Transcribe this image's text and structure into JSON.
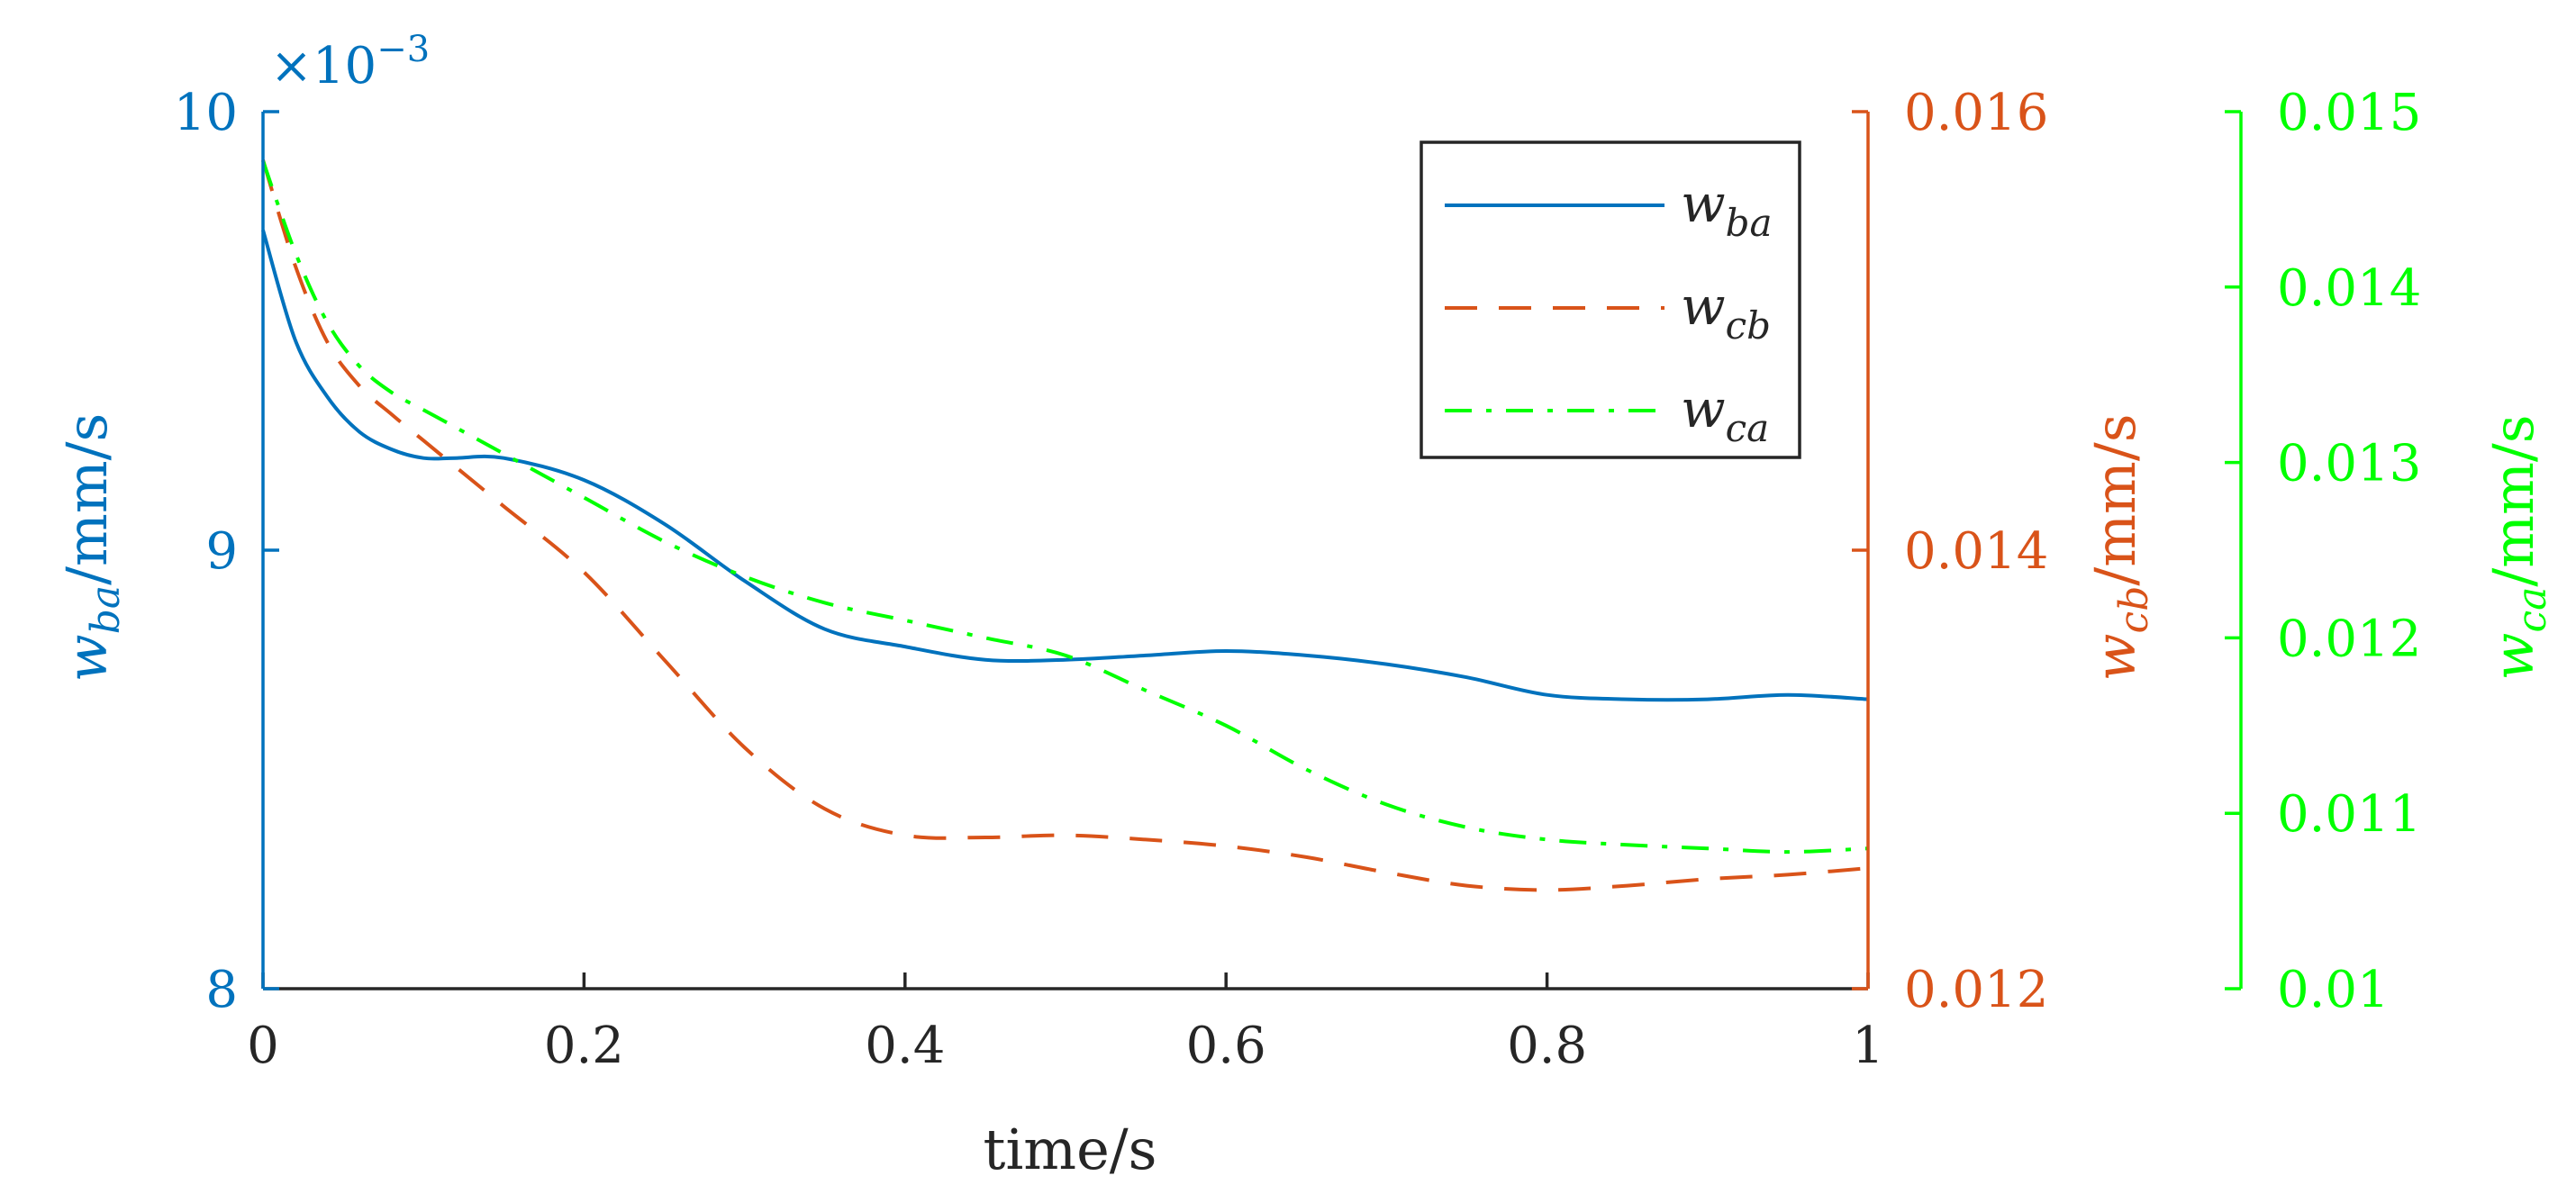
{
  "chart_data": {
    "type": "line",
    "xlabel": "time/s",
    "xlim": [
      0,
      1
    ],
    "x_ticks": [
      0,
      0.2,
      0.4,
      0.6,
      0.8,
      1
    ],
    "x_tick_labels": [
      "0",
      "0.2",
      "0.4",
      "0.6",
      "0.8",
      "1"
    ],
    "axes": {
      "left": {
        "color": "#0072BD",
        "label_main": "w",
        "label_sub": "ba",
        "label_unit": "/mm/s",
        "ylim": [
          0.008,
          0.01
        ],
        "ticks": [
          0.008,
          0.009,
          0.01
        ],
        "tick_labels": [
          "8",
          "9",
          "10"
        ],
        "exponent_prefix": "×10",
        "exponent": "−3"
      },
      "right1": {
        "color": "#D95319",
        "label_main": "w",
        "label_sub": "cb",
        "label_unit": "/mm/s",
        "ylim": [
          0.012,
          0.016
        ],
        "ticks": [
          0.012,
          0.014,
          0.016
        ],
        "tick_labels": [
          "0.012",
          "0.014",
          "0.016"
        ]
      },
      "right2": {
        "color": "#00FF00",
        "label_main": "w",
        "label_sub": "ca",
        "label_unit": "/mm/s",
        "ylim": [
          0.01,
          0.015
        ],
        "ticks": [
          0.01,
          0.011,
          0.012,
          0.013,
          0.014,
          0.015
        ],
        "tick_labels": [
          "0.01",
          "0.011",
          "0.012",
          "0.013",
          "0.014",
          "0.015"
        ]
      }
    },
    "series": [
      {
        "name": "w_ba",
        "legend_main": "w",
        "legend_sub": "ba",
        "axis": "left",
        "color": "#0072BD",
        "dash": "solid",
        "x": [
          0,
          0.02,
          0.04,
          0.06,
          0.08,
          0.1,
          0.12,
          0.15,
          0.2,
          0.25,
          0.3,
          0.35,
          0.4,
          0.45,
          0.5,
          0.55,
          0.6,
          0.65,
          0.7,
          0.75,
          0.8,
          0.85,
          0.9,
          0.95,
          1.0
        ],
        "values": [
          0.00973,
          0.00948,
          0.00935,
          0.00927,
          0.00923,
          0.00921,
          0.00921,
          0.00921,
          0.00916,
          0.00906,
          0.00893,
          0.00882,
          0.00878,
          0.00875,
          0.00875,
          0.00876,
          0.00877,
          0.00876,
          0.00874,
          0.00871,
          0.00867,
          0.00866,
          0.00866,
          0.00867,
          0.00866
        ]
      },
      {
        "name": "w_cb",
        "legend_main": "w",
        "legend_sub": "cb",
        "axis": "right1",
        "color": "#D95319",
        "dash": "dashed",
        "x": [
          0,
          0.02,
          0.04,
          0.06,
          0.08,
          0.1,
          0.12,
          0.15,
          0.2,
          0.25,
          0.3,
          0.35,
          0.4,
          0.45,
          0.5,
          0.55,
          0.6,
          0.65,
          0.7,
          0.75,
          0.8,
          0.85,
          0.9,
          0.95,
          1.0
        ],
        "values": [
          0.01578,
          0.0153,
          0.01495,
          0.01475,
          0.01462,
          0.0145,
          0.01438,
          0.0142,
          0.0139,
          0.0135,
          0.0131,
          0.01282,
          0.0127,
          0.01269,
          0.0127,
          0.01268,
          0.01265,
          0.0126,
          0.01253,
          0.01247,
          0.01245,
          0.01247,
          0.0125,
          0.01252,
          0.01255
        ]
      },
      {
        "name": "w_ca",
        "legend_main": "w",
        "legend_sub": "ca",
        "axis": "right2",
        "color": "#00FF00",
        "dash": "dashdot",
        "x": [
          0,
          0.02,
          0.04,
          0.06,
          0.08,
          0.1,
          0.12,
          0.15,
          0.2,
          0.25,
          0.3,
          0.35,
          0.4,
          0.45,
          0.5,
          0.55,
          0.6,
          0.65,
          0.7,
          0.75,
          0.8,
          0.85,
          0.9,
          0.95,
          1.0
        ],
        "values": [
          0.01472,
          0.0142,
          0.0138,
          0.01355,
          0.0134,
          0.0133,
          0.0132,
          0.01305,
          0.0128,
          0.01255,
          0.01235,
          0.0122,
          0.0121,
          0.012,
          0.0119,
          0.0117,
          0.0115,
          0.01125,
          0.01105,
          0.01092,
          0.01085,
          0.01082,
          0.0108,
          0.01078,
          0.0108
        ]
      }
    ]
  }
}
